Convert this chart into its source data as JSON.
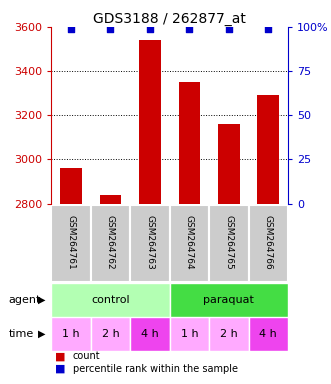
{
  "title": "GDS3188 / 262877_at",
  "samples": [
    "GSM264761",
    "GSM264762",
    "GSM264763",
    "GSM264764",
    "GSM264765",
    "GSM264766"
  ],
  "bar_values": [
    2960,
    2840,
    3540,
    3350,
    3160,
    3290
  ],
  "percentile_values": [
    99,
    99,
    99,
    99,
    99,
    99
  ],
  "bar_color": "#cc0000",
  "dot_color": "#0000cc",
  "ylim_left": [
    2800,
    3600
  ],
  "ylim_right": [
    0,
    100
  ],
  "yticks_left": [
    2800,
    3000,
    3200,
    3400,
    3600
  ],
  "yticks_right": [
    0,
    25,
    50,
    75,
    100
  ],
  "ytick_labels_right": [
    "0",
    "25",
    "50",
    "75",
    "100%"
  ],
  "grid_values": [
    3000,
    3200,
    3400
  ],
  "agent_groups": [
    {
      "label": "control",
      "span": [
        0,
        3
      ],
      "color": "#b3ffb3"
    },
    {
      "label": "paraquat",
      "span": [
        3,
        6
      ],
      "color": "#44dd44"
    }
  ],
  "time_labels": [
    "1 h",
    "2 h",
    "4 h",
    "1 h",
    "2 h",
    "4 h"
  ],
  "time_colors": [
    "#ffaaff",
    "#ffaaff",
    "#ee44ee",
    "#ffaaff",
    "#ffaaff",
    "#ee44ee"
  ],
  "legend_items": [
    {
      "color": "#cc0000",
      "label": "count"
    },
    {
      "color": "#0000cc",
      "label": "percentile rank within the sample"
    }
  ],
  "agent_label": "agent",
  "time_label": "time",
  "title_fontsize": 10,
  "axis_label_color_left": "#cc0000",
  "axis_label_color_right": "#0000cc",
  "background_color": "#ffffff",
  "sample_box_color": "#cccccc"
}
